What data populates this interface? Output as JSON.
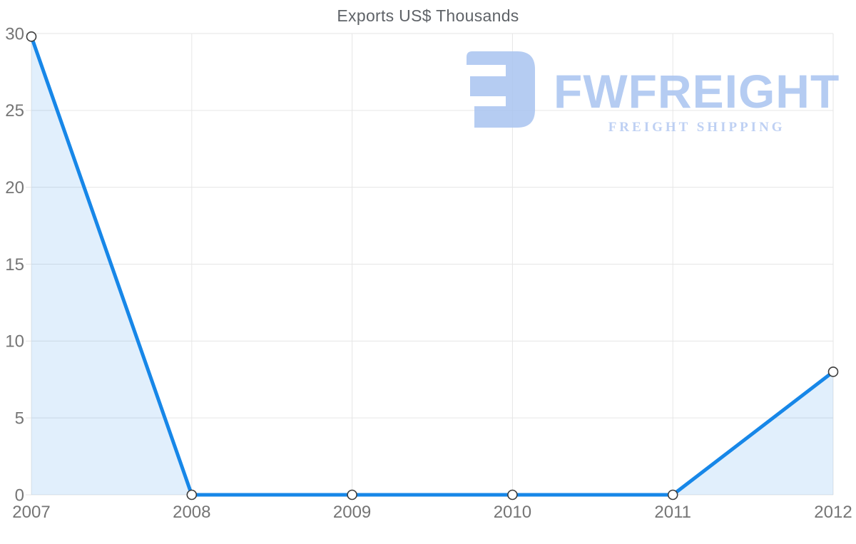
{
  "title": "Exports US$ Thousands",
  "watermark": {
    "brand": "FWFREIGHT",
    "tagline": "FREIGHT SHIPPING",
    "color": "#a9c4f0"
  },
  "chart_data": {
    "type": "area",
    "title": "Exports US$ Thousands",
    "xlabel": "",
    "ylabel": "",
    "categories": [
      "2007",
      "2008",
      "2009",
      "2010",
      "2011",
      "2012"
    ],
    "series": [
      {
        "name": "Exports US$ Thousands",
        "values": [
          29.8,
          0,
          0,
          0,
          0,
          8
        ]
      }
    ],
    "ylim": [
      0,
      30
    ],
    "yticks": [
      0,
      5,
      10,
      15,
      20,
      25,
      30
    ],
    "grid": true,
    "legend": false,
    "line_color": "#1787e8",
    "fill_color": "rgba(23,135,232,0.13)",
    "marker_fill": "#ffffff",
    "marker_stroke": "#3c3c3c",
    "gridline_color": "#e6e6e6",
    "tick_label_color": "#757575",
    "title_color": "#5f6368"
  }
}
